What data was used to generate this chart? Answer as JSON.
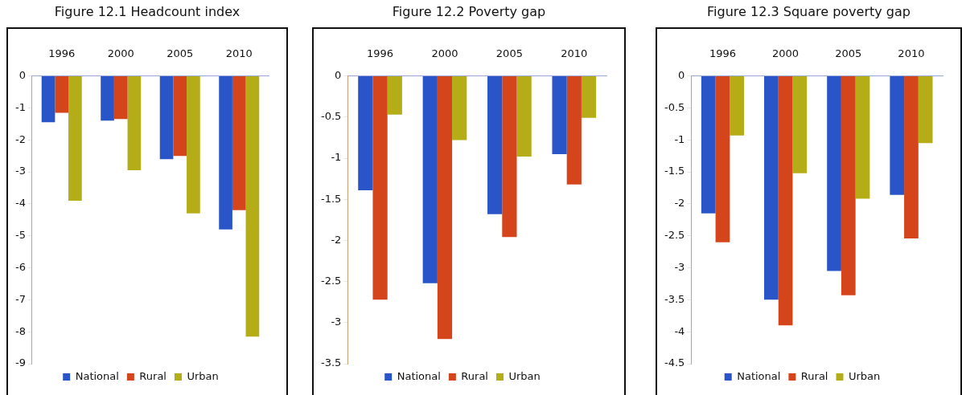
{
  "chart_data": [
    {
      "type": "bar",
      "title": "Figure 12.1 Headcount index",
      "categories": [
        "1996",
        "2000",
        "2005",
        "2010"
      ],
      "series": [
        {
          "name": "National",
          "color": "#2a55c8",
          "values": [
            -1.45,
            -1.4,
            -2.6,
            -4.8
          ]
        },
        {
          "name": "Rural",
          "color": "#d4451c",
          "values": [
            -1.15,
            -1.35,
            -2.5,
            -4.2
          ]
        },
        {
          "name": "Urban",
          "color": "#b5ad17",
          "values": [
            -3.9,
            -2.95,
            -4.3,
            -8.15
          ]
        }
      ],
      "ylim": [
        -9,
        0
      ],
      "yticks": [
        -9,
        -8,
        -7,
        -6,
        -5,
        -4,
        -3,
        -2,
        -1,
        0
      ],
      "grid": false,
      "legend": "bottom"
    },
    {
      "type": "bar",
      "title": "Figure 12.2 Poverty gap",
      "categories": [
        "1996",
        "2000",
        "2005",
        "2010"
      ],
      "series": [
        {
          "name": "National",
          "color": "#2a55c8",
          "values": [
            -1.39,
            -2.52,
            -1.68,
            -0.95
          ]
        },
        {
          "name": "Rural",
          "color": "#d4451c",
          "values": [
            -2.72,
            -3.2,
            -1.96,
            -1.32
          ]
        },
        {
          "name": "Urban",
          "color": "#b5ad17",
          "values": [
            -0.47,
            -0.78,
            -0.98,
            -0.51
          ]
        }
      ],
      "ylim": [
        -3.5,
        0
      ],
      "yticks": [
        -3.5,
        -3,
        -2.5,
        -2,
        -1.5,
        -1,
        -0.5,
        0
      ],
      "grid": false,
      "legend": "bottom"
    },
    {
      "type": "bar",
      "title": "Figure 12.3 Square poverty gap",
      "categories": [
        "1996",
        "2000",
        "2005",
        "2010"
      ],
      "series": [
        {
          "name": "National",
          "color": "#2a55c8",
          "values": [
            -2.15,
            -3.5,
            -3.05,
            -1.86
          ]
        },
        {
          "name": "Rural",
          "color": "#d4451c",
          "values": [
            -2.6,
            -3.9,
            -3.43,
            -2.54
          ]
        },
        {
          "name": "Urban",
          "color": "#b5ad17",
          "values": [
            -0.93,
            -1.52,
            -1.92,
            -1.05
          ]
        }
      ],
      "ylim": [
        -4.5,
        0
      ],
      "yticks": [
        -4.5,
        -4,
        -3.5,
        -3,
        -2.5,
        -2,
        -1.5,
        -1,
        -0.5,
        0
      ],
      "grid": false,
      "legend": "bottom"
    }
  ]
}
